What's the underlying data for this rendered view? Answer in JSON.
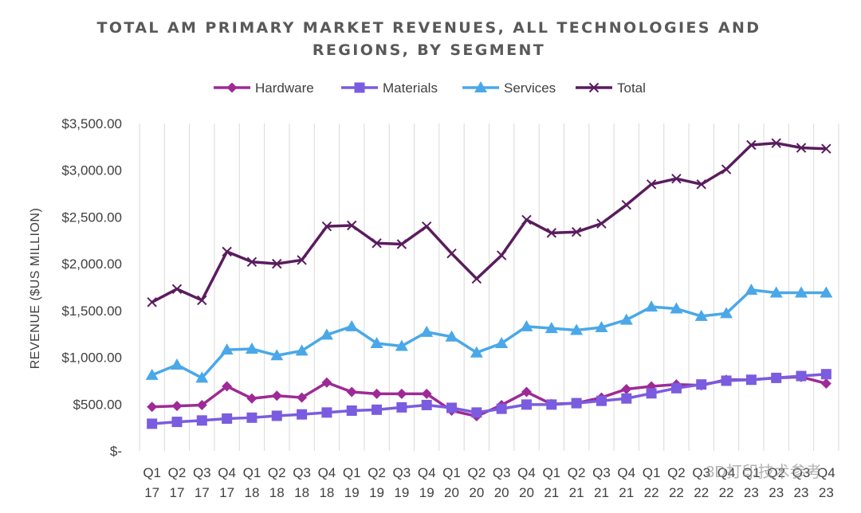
{
  "chart_data": {
    "type": "line",
    "title": "TOTAL AM PRIMARY MARKET REVENUES, ALL TECHNOLOGIES AND REGIONS, BY SEGMENT",
    "title_lines": [
      "TOTAL AM PRIMARY MARKET REVENUES, ALL TECHNOLOGIES AND",
      "REGIONS, BY SEGMENT"
    ],
    "xlabel": "",
    "ylabel": "REVENUE ($US MILLION)",
    "ylim": [
      0,
      3500
    ],
    "yticks": [
      0,
      500,
      1000,
      1500,
      2000,
      2500,
      3000,
      3500
    ],
    "ytick_labels": [
      "$-",
      "$500.00",
      "$1,000.00",
      "$1,500.00",
      "$2,000.00",
      "$2,500.00",
      "$3,000.00",
      "$3,500.00"
    ],
    "grid": "vertical",
    "legend": "top",
    "categories": [
      [
        "Q1",
        "17"
      ],
      [
        "Q2",
        "17"
      ],
      [
        "Q3",
        "17"
      ],
      [
        "Q4",
        "17"
      ],
      [
        "Q1",
        "18"
      ],
      [
        "Q2",
        "18"
      ],
      [
        "Q3",
        "18"
      ],
      [
        "Q4",
        "18"
      ],
      [
        "Q1",
        "19"
      ],
      [
        "Q2",
        "19"
      ],
      [
        "Q3",
        "19"
      ],
      [
        "Q4",
        "19"
      ],
      [
        "Q1",
        "20"
      ],
      [
        "Q2",
        "20"
      ],
      [
        "Q3",
        "20"
      ],
      [
        "Q4",
        "20"
      ],
      [
        "Q1",
        "21"
      ],
      [
        "Q2",
        "21"
      ],
      [
        "Q3",
        "21"
      ],
      [
        "Q4",
        "21"
      ],
      [
        "Q1",
        "22"
      ],
      [
        "Q2",
        "22"
      ],
      [
        "Q3",
        "22"
      ],
      [
        "Q4",
        "22"
      ],
      [
        "Q1",
        "23"
      ],
      [
        "Q2",
        "23"
      ],
      [
        "Q3",
        "23"
      ],
      [
        "Q4",
        "23"
      ]
    ],
    "series": [
      {
        "name": "Hardware",
        "color": "#9e2a96",
        "marker": "diamond",
        "values": [
          470,
          480,
          490,
          690,
          560,
          590,
          570,
          730,
          630,
          610,
          610,
          610,
          430,
          370,
          490,
          630,
          500,
          510,
          570,
          660,
          690,
          710,
          700,
          760,
          760,
          780,
          790,
          720
        ]
      },
      {
        "name": "Materials",
        "color": "#7a5ce0",
        "marker": "square",
        "values": [
          290,
          310,
          325,
          345,
          355,
          375,
          390,
          410,
          430,
          440,
          465,
          490,
          460,
          410,
          450,
          495,
          495,
          510,
          535,
          560,
          615,
          670,
          710,
          750,
          760,
          780,
          800,
          820
        ]
      },
      {
        "name": "Services",
        "color": "#4aa8e8",
        "marker": "triangle",
        "values": [
          810,
          920,
          780,
          1080,
          1090,
          1020,
          1070,
          1240,
          1330,
          1150,
          1120,
          1270,
          1220,
          1050,
          1150,
          1330,
          1310,
          1290,
          1320,
          1400,
          1540,
          1520,
          1440,
          1470,
          1720,
          1690,
          1690,
          1690
        ]
      },
      {
        "name": "Total",
        "color": "#5a1c5e",
        "marker": "x",
        "values": [
          1590,
          1730,
          1610,
          2130,
          2020,
          2000,
          2040,
          2400,
          2410,
          2220,
          2210,
          2400,
          2110,
          1840,
          2090,
          2470,
          2330,
          2340,
          2430,
          2630,
          2850,
          2910,
          2850,
          3010,
          3270,
          3290,
          3240,
          3230
        ]
      }
    ]
  },
  "watermark": "3D打印技术参考"
}
